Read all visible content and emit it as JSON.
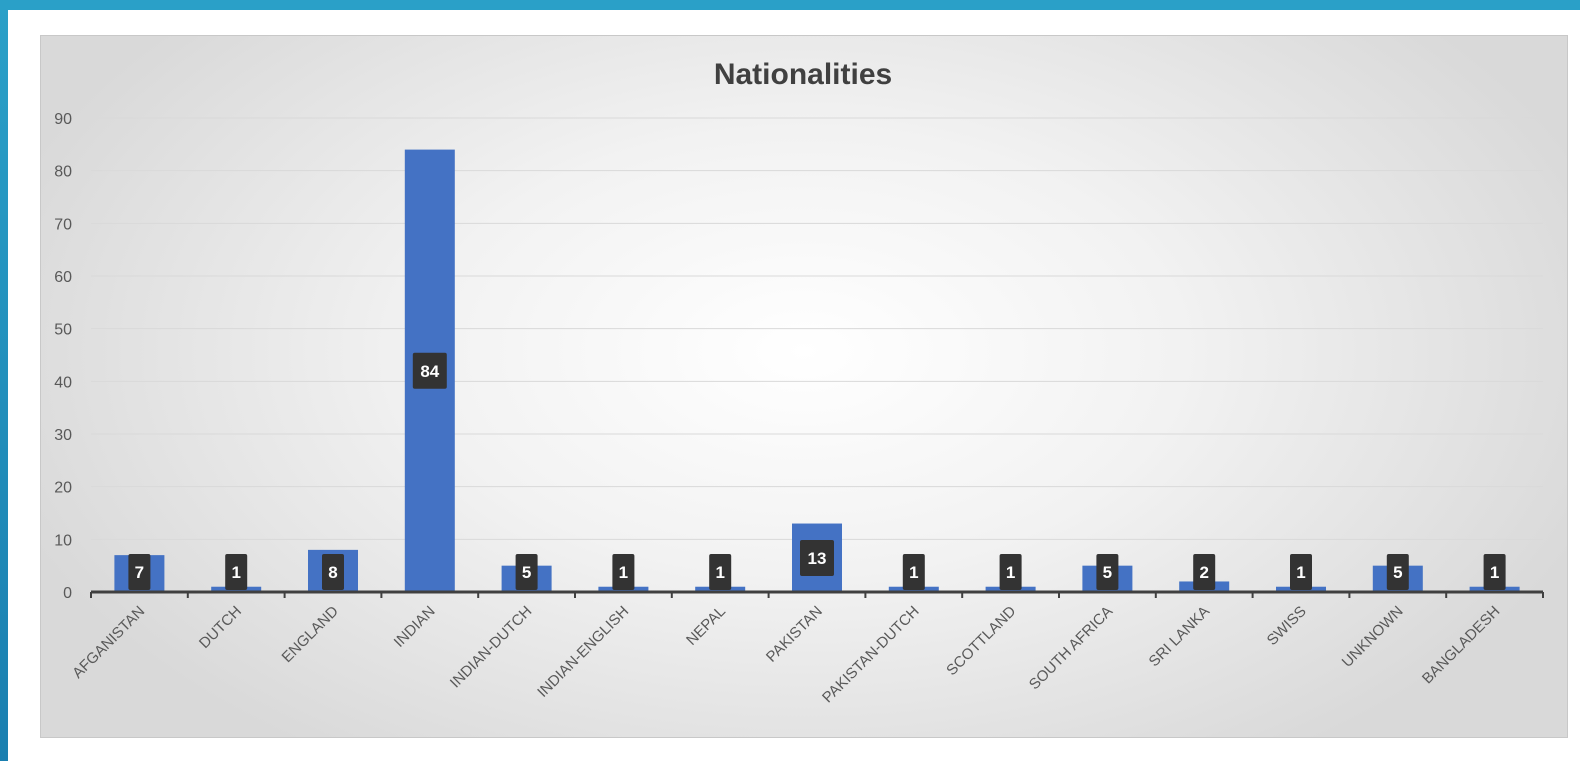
{
  "chart_data": {
    "type": "bar",
    "title": "Nationalities",
    "categories": [
      "AFGANISTAN",
      "DUTCH",
      "ENGLAND",
      "INDIAN",
      "INDIAN-DUTCH",
      "INDIAN-ENGLISH",
      "NEPAL",
      "PAKISTAN",
      "PAKISTAN-DUTCH",
      "SCOTTLAND",
      "SOUTH AFRICA",
      "SRI LANKA",
      "SWISS",
      "UNKNOWN",
      "BANGLADESH"
    ],
    "values": [
      7,
      1,
      8,
      84,
      5,
      1,
      1,
      13,
      1,
      1,
      5,
      2,
      1,
      5,
      1
    ],
    "ylim": [
      0,
      90
    ],
    "yticks": [
      0,
      10,
      20,
      30,
      40,
      50,
      60,
      70,
      80,
      90
    ],
    "xlabel": "",
    "ylabel": "",
    "grid": true,
    "legend": "none",
    "colors": {
      "bar": "#4472c4",
      "label_bg": "#333333",
      "label_text": "#ffffff",
      "grid": "#d9d9d9",
      "axis": "#404040",
      "title": "#404040"
    }
  }
}
